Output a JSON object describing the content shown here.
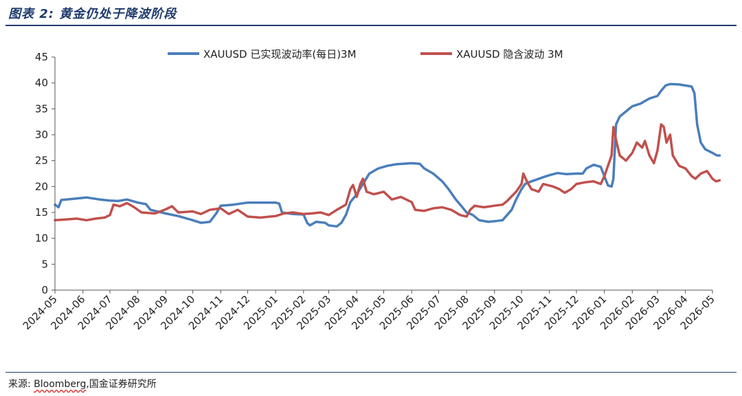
{
  "figure": {
    "title": "图表 2:  黄金仍处于降波阶段",
    "source_label": "来源:",
    "source_name": "Bloomberg",
    "source_rest": ",国金证券研究所"
  },
  "chart_data": {
    "type": "line",
    "title": "",
    "xlabel": "",
    "ylabel": "",
    "ylim": [
      0,
      45
    ],
    "yticks": [
      0,
      5,
      10,
      15,
      20,
      25,
      30,
      35,
      40,
      45
    ],
    "xticks": [
      "2024-05",
      "2024-06",
      "2024-07",
      "2024-08",
      "2024-09",
      "2024-10",
      "2024-11",
      "2024-12",
      "2025-01",
      "2025-02",
      "2025-03",
      "2025-04",
      "2025-05",
      "2025-06",
      "2025-07",
      "2025-08",
      "2025-09",
      "2025-10",
      "2025-11",
      "2025-12",
      "2026-01",
      "2026-02",
      "2026-03",
      "2026-04",
      "2026-05"
    ],
    "grid": false,
    "legend": "top-center",
    "series": [
      {
        "name": "XAUUSD 已实现波动率(每日)3M",
        "color": "#4a7ebb",
        "points": [
          [
            "2024-05-01",
            16.5
          ],
          [
            "2024-05-05",
            16.0
          ],
          [
            "2024-05-08",
            17.4
          ],
          [
            "2024-05-20",
            17.6
          ],
          [
            "2024-06-05",
            17.9
          ],
          [
            "2024-06-20",
            17.5
          ],
          [
            "2024-07-01",
            17.3
          ],
          [
            "2024-07-10",
            17.2
          ],
          [
            "2024-07-20",
            17.5
          ],
          [
            "2024-08-01",
            16.9
          ],
          [
            "2024-08-10",
            16.6
          ],
          [
            "2024-08-15",
            15.5
          ],
          [
            "2024-09-01",
            14.8
          ],
          [
            "2024-09-15",
            14.3
          ],
          [
            "2024-10-01",
            13.5
          ],
          [
            "2024-10-10",
            13.0
          ],
          [
            "2024-10-20",
            13.2
          ],
          [
            "2024-10-27",
            14.8
          ],
          [
            "2024-11-01",
            16.3
          ],
          [
            "2024-11-15",
            16.5
          ],
          [
            "2024-12-01",
            16.9
          ],
          [
            "2024-12-15",
            16.9
          ],
          [
            "2025-01-01",
            16.9
          ],
          [
            "2025-01-05",
            16.7
          ],
          [
            "2025-01-08",
            15.0
          ],
          [
            "2025-01-20",
            14.7
          ],
          [
            "2025-02-01",
            14.6
          ],
          [
            "2025-02-05",
            13.0
          ],
          [
            "2025-02-08",
            12.5
          ],
          [
            "2025-02-15",
            13.2
          ],
          [
            "2025-02-25",
            13.0
          ],
          [
            "2025-03-01",
            12.5
          ],
          [
            "2025-03-10",
            12.3
          ],
          [
            "2025-03-15",
            13.0
          ],
          [
            "2025-03-20",
            14.5
          ],
          [
            "2025-03-25",
            17.0
          ],
          [
            "2025-04-01",
            18.5
          ],
          [
            "2025-04-08",
            20.5
          ],
          [
            "2025-04-15",
            22.5
          ],
          [
            "2025-04-25",
            23.5
          ],
          [
            "2025-05-05",
            24.0
          ],
          [
            "2025-05-15",
            24.3
          ],
          [
            "2025-06-01",
            24.5
          ],
          [
            "2025-06-10",
            24.4
          ],
          [
            "2025-06-15",
            23.5
          ],
          [
            "2025-06-25",
            22.5
          ],
          [
            "2025-07-05",
            21.0
          ],
          [
            "2025-07-12",
            19.5
          ],
          [
            "2025-07-20",
            17.5
          ],
          [
            "2025-07-25",
            16.5
          ],
          [
            "2025-08-01",
            15.0
          ],
          [
            "2025-08-08",
            14.5
          ],
          [
            "2025-08-15",
            13.5
          ],
          [
            "2025-08-25",
            13.2
          ],
          [
            "2025-09-01",
            13.3
          ],
          [
            "2025-09-10",
            13.5
          ],
          [
            "2025-09-20",
            15.5
          ],
          [
            "2025-09-25",
            17.5
          ],
          [
            "2025-10-01",
            19.5
          ],
          [
            "2025-10-05",
            20.5
          ],
          [
            "2025-10-12",
            21.0
          ],
          [
            "2025-10-25",
            21.8
          ],
          [
            "2025-11-01",
            22.2
          ],
          [
            "2025-11-10",
            22.6
          ],
          [
            "2025-11-20",
            22.4
          ],
          [
            "2025-12-01",
            22.5
          ],
          [
            "2025-12-08",
            22.5
          ],
          [
            "2025-12-12",
            23.5
          ],
          [
            "2025-12-20",
            24.2
          ],
          [
            "2025-12-28",
            23.8
          ],
          [
            "2026-01-01",
            22.0
          ],
          [
            "2026-01-05",
            20.2
          ],
          [
            "2026-01-09",
            20.0
          ],
          [
            "2026-01-11",
            21.5
          ],
          [
            "2026-01-14",
            32.0
          ],
          [
            "2026-01-18",
            33.5
          ],
          [
            "2026-01-25",
            34.5
          ],
          [
            "2026-02-01",
            35.5
          ],
          [
            "2026-02-10",
            36.0
          ],
          [
            "2026-02-15",
            36.5
          ],
          [
            "2026-02-20",
            37.0
          ],
          [
            "2026-03-01",
            37.5
          ],
          [
            "2026-03-05",
            38.5
          ],
          [
            "2026-03-10",
            39.5
          ],
          [
            "2026-03-15",
            39.8
          ],
          [
            "2026-03-25",
            39.7
          ],
          [
            "2026-04-01",
            39.5
          ],
          [
            "2026-04-08",
            39.3
          ],
          [
            "2026-04-11",
            38.0
          ],
          [
            "2026-04-14",
            32.0
          ],
          [
            "2026-04-18",
            28.5
          ],
          [
            "2026-04-23",
            27.2
          ],
          [
            "2026-05-01",
            26.5
          ],
          [
            "2026-05-06",
            26.0
          ],
          [
            "2026-05-09",
            26.0
          ]
        ]
      },
      {
        "name": "XAUUSD 隐含波动 3M",
        "color": "#c0504d",
        "points": [
          [
            "2024-05-01",
            13.5
          ],
          [
            "2024-05-10",
            13.6
          ],
          [
            "2024-05-25",
            13.8
          ],
          [
            "2024-06-05",
            13.5
          ],
          [
            "2024-06-15",
            13.8
          ],
          [
            "2024-06-25",
            14.0
          ],
          [
            "2024-07-01",
            14.5
          ],
          [
            "2024-07-05",
            16.5
          ],
          [
            "2024-07-12",
            16.2
          ],
          [
            "2024-07-20",
            16.8
          ],
          [
            "2024-07-28",
            16.0
          ],
          [
            "2024-08-05",
            15.0
          ],
          [
            "2024-08-20",
            14.8
          ],
          [
            "2024-09-01",
            15.6
          ],
          [
            "2024-09-08",
            16.2
          ],
          [
            "2024-09-15",
            15.0
          ],
          [
            "2024-10-01",
            15.2
          ],
          [
            "2024-10-10",
            14.7
          ],
          [
            "2024-10-20",
            15.5
          ],
          [
            "2024-11-01",
            15.8
          ],
          [
            "2024-11-10",
            14.7
          ],
          [
            "2024-11-20",
            15.5
          ],
          [
            "2024-12-01",
            14.2
          ],
          [
            "2024-12-15",
            14.0
          ],
          [
            "2025-01-01",
            14.3
          ],
          [
            "2025-01-10",
            14.8
          ],
          [
            "2025-01-20",
            15.0
          ],
          [
            "2025-02-01",
            14.7
          ],
          [
            "2025-02-10",
            14.8
          ],
          [
            "2025-02-20",
            15.0
          ],
          [
            "2025-03-01",
            14.5
          ],
          [
            "2025-03-10",
            15.5
          ],
          [
            "2025-03-20",
            16.5
          ],
          [
            "2025-03-25",
            19.5
          ],
          [
            "2025-03-28",
            20.3
          ],
          [
            "2025-04-01",
            18.0
          ],
          [
            "2025-04-05",
            20.5
          ],
          [
            "2025-04-08",
            21.5
          ],
          [
            "2025-04-12",
            19.0
          ],
          [
            "2025-04-20",
            18.5
          ],
          [
            "2025-05-01",
            19.0
          ],
          [
            "2025-05-10",
            17.5
          ],
          [
            "2025-05-20",
            18.0
          ],
          [
            "2025-06-01",
            17.0
          ],
          [
            "2025-06-05",
            15.5
          ],
          [
            "2025-06-15",
            15.3
          ],
          [
            "2025-06-25",
            15.8
          ],
          [
            "2025-07-05",
            16.0
          ],
          [
            "2025-07-15",
            15.5
          ],
          [
            "2025-07-25",
            14.5
          ],
          [
            "2025-08-01",
            14.2
          ],
          [
            "2025-08-05",
            15.5
          ],
          [
            "2025-08-10",
            16.3
          ],
          [
            "2025-08-20",
            16.0
          ],
          [
            "2025-09-01",
            16.3
          ],
          [
            "2025-09-10",
            16.5
          ],
          [
            "2025-09-15",
            17.2
          ],
          [
            "2025-09-25",
            19.0
          ],
          [
            "2025-10-01",
            20.5
          ],
          [
            "2025-10-03",
            22.5
          ],
          [
            "2025-10-07",
            21.0
          ],
          [
            "2025-10-12",
            19.5
          ],
          [
            "2025-10-20",
            19.0
          ],
          [
            "2025-10-25",
            20.5
          ],
          [
            "2025-11-05",
            20.0
          ],
          [
            "2025-11-12",
            19.5
          ],
          [
            "2025-11-18",
            18.8
          ],
          [
            "2025-11-25",
            19.5
          ],
          [
            "2025-12-01",
            20.5
          ],
          [
            "2025-12-10",
            20.8
          ],
          [
            "2025-12-20",
            21.0
          ],
          [
            "2025-12-28",
            20.5
          ],
          [
            "2026-01-01",
            22.0
          ],
          [
            "2026-01-05",
            24.0
          ],
          [
            "2026-01-09",
            26.0
          ],
          [
            "2026-01-11",
            31.5
          ],
          [
            "2026-01-14",
            29.0
          ],
          [
            "2026-01-18",
            26.0
          ],
          [
            "2026-01-25",
            25.0
          ],
          [
            "2026-02-01",
            26.5
          ],
          [
            "2026-02-06",
            28.5
          ],
          [
            "2026-02-12",
            27.5
          ],
          [
            "2026-02-15",
            28.8
          ],
          [
            "2026-02-20",
            26.0
          ],
          [
            "2026-02-25",
            24.5
          ],
          [
            "2026-03-01",
            27.0
          ],
          [
            "2026-03-05",
            32.0
          ],
          [
            "2026-03-08",
            31.5
          ],
          [
            "2026-03-11",
            28.5
          ],
          [
            "2026-03-15",
            30.0
          ],
          [
            "2026-03-18",
            26.0
          ],
          [
            "2026-03-25",
            24.0
          ],
          [
            "2026-04-01",
            23.5
          ],
          [
            "2026-04-08",
            22.0
          ],
          [
            "2026-04-12",
            21.5
          ],
          [
            "2026-04-18",
            22.5
          ],
          [
            "2026-04-25",
            23.0
          ],
          [
            "2026-05-01",
            21.5
          ],
          [
            "2026-05-05",
            21.0
          ],
          [
            "2026-05-09",
            21.2
          ]
        ]
      }
    ]
  }
}
